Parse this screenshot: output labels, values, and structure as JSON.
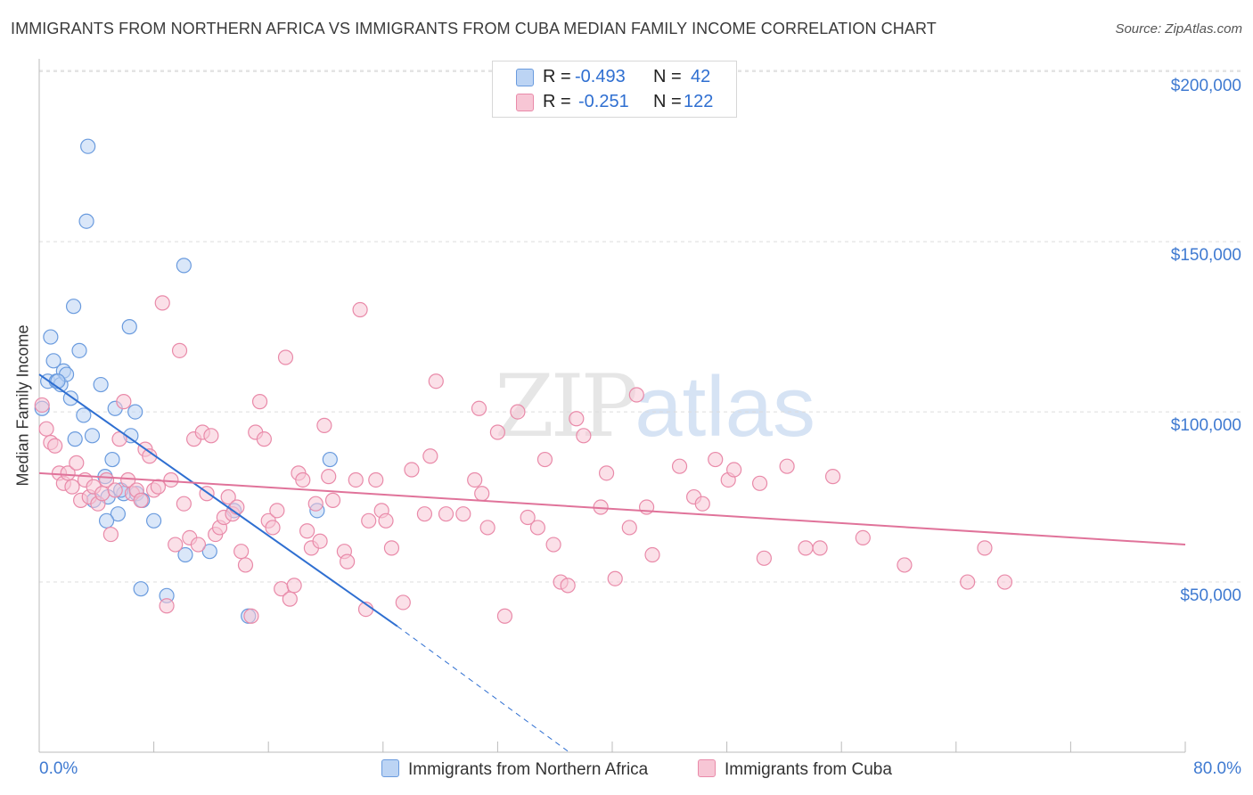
{
  "header": {
    "title": "IMMIGRANTS FROM NORTHERN AFRICA VS IMMIGRANTS FROM CUBA MEDIAN FAMILY INCOME CORRELATION CHART",
    "source": "Source: ZipAtlas.com"
  },
  "watermark": {
    "zip": "ZIP",
    "atlas": "atlas"
  },
  "legend": {
    "rows": [
      {
        "r_label": "R =",
        "r_value": "-0.493",
        "n_label": "N =",
        "n_value": "42",
        "color": "#a9c7ef"
      },
      {
        "r_label": "R =",
        "r_value": "-0.251",
        "n_label": "N =",
        "n_value": "122",
        "color": "#f4b6c8"
      }
    ]
  },
  "chart_data": {
    "type": "scatter",
    "title": "IMMIGRANTS FROM NORTHERN AFRICA VS IMMIGRANTS FROM CUBA MEDIAN FAMILY INCOME CORRELATION CHART",
    "xlabel": "",
    "ylabel": "Median Family Income",
    "xlim": [
      0,
      80
    ],
    "ylim": [
      0,
      210000
    ],
    "x_tick_labels": [
      "0.0%",
      "80.0%"
    ],
    "y_tick_labels": [
      "$50,000",
      "$100,000",
      "$150,000",
      "$200,000"
    ],
    "y_tick_values": [
      50000,
      100000,
      150000,
      200000
    ],
    "grid": true,
    "legend_position": "top-center",
    "series": [
      {
        "name": "Immigrants from Northern Africa",
        "color": "#6a9bde",
        "fill": "#bcd4f4",
        "points": [
          [
            0.2,
            101000
          ],
          [
            0.6,
            109000
          ],
          [
            0.8,
            122000
          ],
          [
            1.0,
            115000
          ],
          [
            1.2,
            109000
          ],
          [
            1.5,
            108000
          ],
          [
            1.7,
            112000
          ],
          [
            1.9,
            111000
          ],
          [
            2.2,
            104000
          ],
          [
            2.4,
            131000
          ],
          [
            2.5,
            92000
          ],
          [
            2.8,
            118000
          ],
          [
            3.1,
            99000
          ],
          [
            3.4,
            178000
          ],
          [
            3.3,
            156000
          ],
          [
            3.7,
            93000
          ],
          [
            4.3,
            108000
          ],
          [
            4.6,
            81000
          ],
          [
            4.8,
            75000
          ],
          [
            5.1,
            86000
          ],
          [
            5.3,
            101000
          ],
          [
            5.5,
            70000
          ],
          [
            5.9,
            76000
          ],
          [
            6.3,
            125000
          ],
          [
            6.4,
            93000
          ],
          [
            6.7,
            100000
          ],
          [
            6.8,
            76000
          ],
          [
            7.1,
            48000
          ],
          [
            7.2,
            74000
          ],
          [
            4.7,
            68000
          ],
          [
            8.0,
            68000
          ],
          [
            8.9,
            46000
          ],
          [
            10.1,
            143000
          ],
          [
            10.2,
            58000
          ],
          [
            11.9,
            59000
          ],
          [
            13.6,
            71000
          ],
          [
            14.6,
            40000
          ],
          [
            19.4,
            71000
          ],
          [
            20.3,
            86000
          ],
          [
            3.8,
            74000
          ],
          [
            1.3,
            109000
          ],
          [
            5.7,
            77000
          ]
        ]
      },
      {
        "name": "Immigrants from Cuba",
        "color": "#e98aa9",
        "fill": "#f7c6d5",
        "points": [
          [
            0.2,
            102000
          ],
          [
            0.5,
            95000
          ],
          [
            0.8,
            91000
          ],
          [
            1.1,
            90000
          ],
          [
            1.4,
            82000
          ],
          [
            1.7,
            79000
          ],
          [
            2.0,
            82000
          ],
          [
            2.3,
            78000
          ],
          [
            2.6,
            85000
          ],
          [
            2.9,
            74000
          ],
          [
            3.2,
            80000
          ],
          [
            3.5,
            75000
          ],
          [
            3.8,
            78000
          ],
          [
            4.1,
            73000
          ],
          [
            4.4,
            76000
          ],
          [
            4.7,
            80000
          ],
          [
            5.0,
            64000
          ],
          [
            5.3,
            77000
          ],
          [
            5.6,
            92000
          ],
          [
            5.9,
            103000
          ],
          [
            6.2,
            80000
          ],
          [
            6.5,
            76000
          ],
          [
            6.8,
            77000
          ],
          [
            7.1,
            74000
          ],
          [
            7.4,
            89000
          ],
          [
            7.7,
            87000
          ],
          [
            8.0,
            77000
          ],
          [
            8.3,
            78000
          ],
          [
            8.6,
            132000
          ],
          [
            8.9,
            43000
          ],
          [
            9.2,
            80000
          ],
          [
            9.5,
            61000
          ],
          [
            9.8,
            118000
          ],
          [
            10.1,
            73000
          ],
          [
            10.5,
            63000
          ],
          [
            10.8,
            92000
          ],
          [
            11.1,
            61000
          ],
          [
            11.4,
            94000
          ],
          [
            11.7,
            76000
          ],
          [
            12.0,
            93000
          ],
          [
            12.3,
            64000
          ],
          [
            12.6,
            66000
          ],
          [
            12.9,
            69000
          ],
          [
            13.2,
            75000
          ],
          [
            13.5,
            70000
          ],
          [
            13.8,
            72000
          ],
          [
            14.1,
            59000
          ],
          [
            14.4,
            55000
          ],
          [
            14.8,
            40000
          ],
          [
            15.1,
            94000
          ],
          [
            15.4,
            103000
          ],
          [
            15.7,
            92000
          ],
          [
            16.0,
            68000
          ],
          [
            16.3,
            66000
          ],
          [
            16.6,
            71000
          ],
          [
            16.9,
            48000
          ],
          [
            17.2,
            116000
          ],
          [
            17.5,
            45000
          ],
          [
            17.8,
            49000
          ],
          [
            18.1,
            82000
          ],
          [
            18.4,
            80000
          ],
          [
            18.7,
            65000
          ],
          [
            19.0,
            60000
          ],
          [
            19.3,
            73000
          ],
          [
            19.6,
            62000
          ],
          [
            19.9,
            96000
          ],
          [
            20.2,
            81000
          ],
          [
            20.5,
            74000
          ],
          [
            21.3,
            59000
          ],
          [
            21.5,
            56000
          ],
          [
            22.1,
            80000
          ],
          [
            22.4,
            130000
          ],
          [
            22.8,
            42000
          ],
          [
            23.0,
            68000
          ],
          [
            23.5,
            80000
          ],
          [
            23.9,
            71000
          ],
          [
            24.2,
            68000
          ],
          [
            24.6,
            60000
          ],
          [
            25.4,
            44000
          ],
          [
            26.0,
            83000
          ],
          [
            26.9,
            70000
          ],
          [
            27.3,
            87000
          ],
          [
            27.7,
            109000
          ],
          [
            28.4,
            70000
          ],
          [
            29.6,
            70000
          ],
          [
            30.4,
            80000
          ],
          [
            30.7,
            101000
          ],
          [
            30.9,
            76000
          ],
          [
            31.3,
            66000
          ],
          [
            32.0,
            94000
          ],
          [
            32.5,
            40000
          ],
          [
            33.4,
            100000
          ],
          [
            34.1,
            69000
          ],
          [
            34.8,
            66000
          ],
          [
            35.3,
            86000
          ],
          [
            35.9,
            61000
          ],
          [
            36.4,
            50000
          ],
          [
            36.9,
            49000
          ],
          [
            37.5,
            98000
          ],
          [
            38.0,
            93000
          ],
          [
            39.2,
            72000
          ],
          [
            39.6,
            82000
          ],
          [
            40.2,
            51000
          ],
          [
            41.2,
            66000
          ],
          [
            41.7,
            105000
          ],
          [
            42.4,
            72000
          ],
          [
            42.8,
            58000
          ],
          [
            44.7,
            84000
          ],
          [
            45.7,
            75000
          ],
          [
            46.3,
            73000
          ],
          [
            47.2,
            86000
          ],
          [
            48.1,
            80000
          ],
          [
            48.5,
            83000
          ],
          [
            50.3,
            79000
          ],
          [
            50.6,
            57000
          ],
          [
            52.2,
            84000
          ],
          [
            53.5,
            60000
          ],
          [
            54.5,
            60000
          ],
          [
            55.4,
            81000
          ],
          [
            57.5,
            63000
          ],
          [
            60.4,
            55000
          ],
          [
            64.8,
            50000
          ],
          [
            66.0,
            60000
          ],
          [
            67.4,
            50000
          ]
        ]
      }
    ],
    "trendlines": [
      {
        "series": "Immigrants from Northern Africa",
        "x0": 0,
        "y0": 111000,
        "x1": 25,
        "y1": 37000,
        "dashed_to_x": 37,
        "dashed_to_y": 0
      },
      {
        "series": "Immigrants from Cuba",
        "x0": 0,
        "y0": 82000,
        "x1": 80,
        "y1": 61000
      }
    ]
  },
  "bottom_legend": [
    {
      "label": "Immigrants from Northern Africa",
      "color": "#bcd4f4",
      "border": "#6a9bde"
    },
    {
      "label": "Immigrants from Cuba",
      "color": "#f7c6d5",
      "border": "#e98aa9"
    }
  ]
}
